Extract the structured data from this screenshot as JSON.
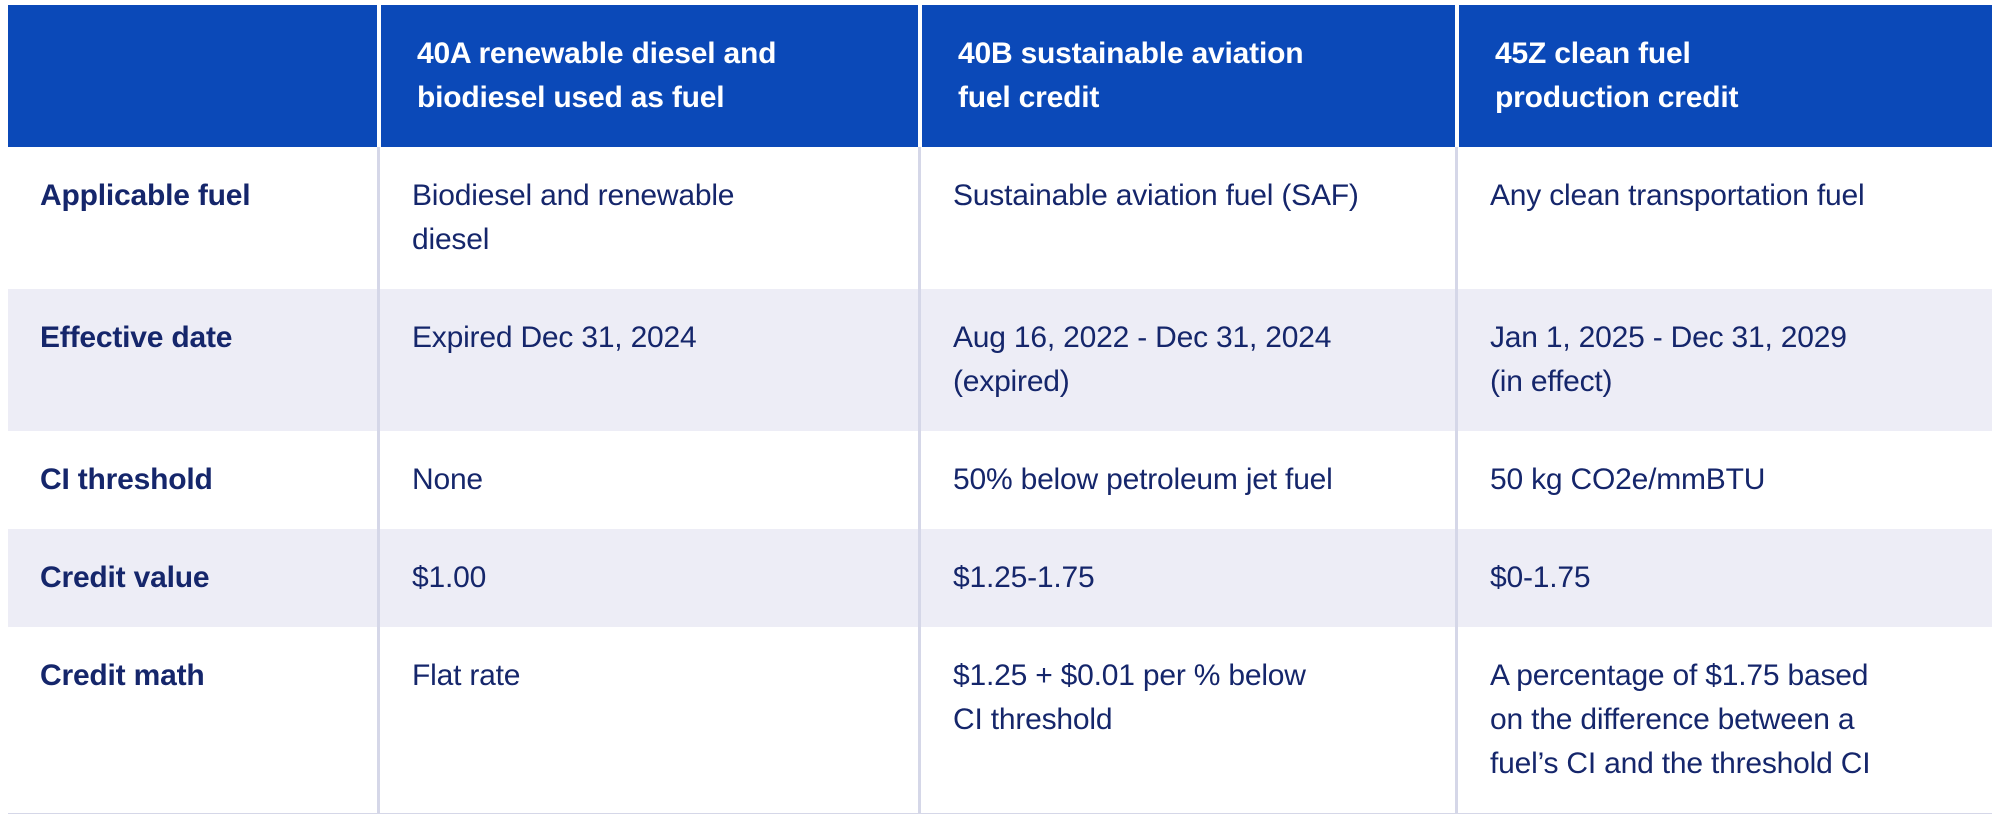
{
  "table": {
    "title_semantic": "fuel-tax-credit-comparison",
    "columns": {
      "corner": "",
      "col40a": "40A renewable diesel and\nbiodiesel used as fuel",
      "col40b": "40B sustainable aviation\nfuel credit",
      "col45z": "45Z clean fuel\nproduction credit"
    },
    "rows": [
      {
        "label": "Applicable fuel",
        "c40a": "Biodiesel and renewable\ndiesel",
        "c40b": "Sustainable aviation fuel (SAF)",
        "c45z": "Any clean transportation fuel"
      },
      {
        "label": "Effective date",
        "c40a": "Expired Dec 31, 2024",
        "c40b": "Aug 16, 2022 - Dec 31, 2024\n(expired)",
        "c45z": "Jan 1, 2025 - Dec 31, 2029\n(in effect)"
      },
      {
        "label": "CI threshold",
        "c40a": "None",
        "c40b": "50% below petroleum jet fuel",
        "c45z": "50 kg CO2e/mmBTU"
      },
      {
        "label": "Credit value",
        "c40a": "$1.00",
        "c40b": "$1.25-1.75",
        "c45z": "$0-1.75"
      },
      {
        "label": "Credit math",
        "c40a": "Flat rate",
        "c40b": "$1.25 + $0.01 per % below\nCI threshold",
        "c45z": "A percentage of $1.75 based\non the difference between a\nfuel’s CI and the threshold CI"
      }
    ]
  },
  "colors": {
    "header_background": "#0b49b8",
    "header_text": "#ffffff",
    "body_text": "#15266b",
    "striped_row_background": "#ededf6",
    "divider": "#d5d7e8"
  }
}
